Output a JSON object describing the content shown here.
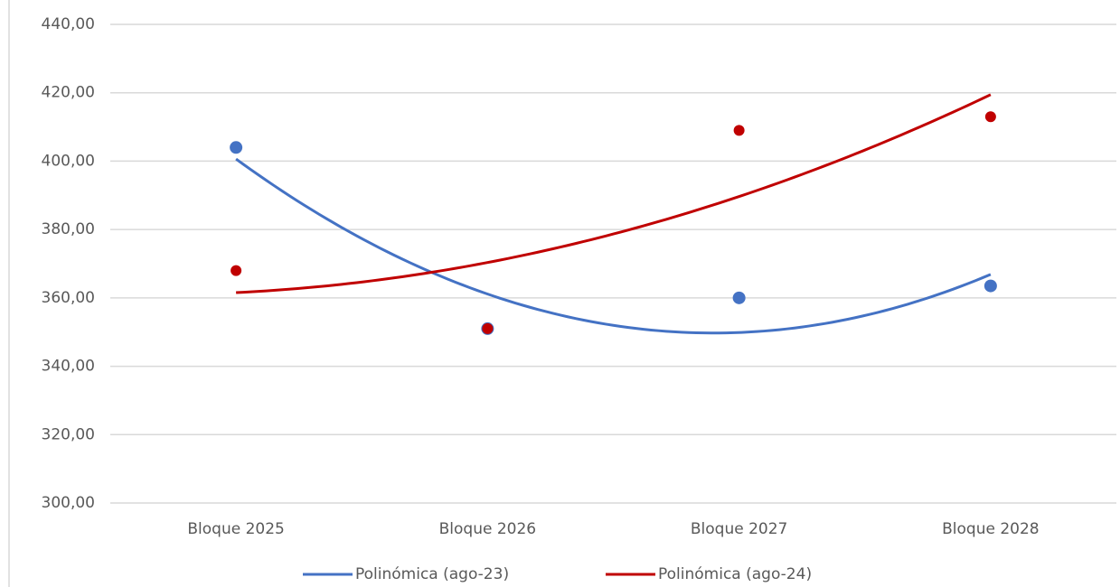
{
  "chart_data": {
    "type": "scatter",
    "categories": [
      "Bloque 2025",
      "Bloque 2026",
      "Bloque 2027",
      "Bloque 2028"
    ],
    "series": [
      {
        "name": "Polinómica (ago-23)",
        "color": "#4472c4",
        "values": [
          404,
          351,
          360,
          363.5
        ]
      },
      {
        "name": "Polinómica (ago-24)",
        "color": "#c00000",
        "values": [
          368,
          351,
          409,
          413
        ]
      }
    ],
    "trendline": {
      "type": "polynomial",
      "order": 2
    },
    "ylim": [
      300,
      440
    ],
    "yticks": [
      {
        "value": 300,
        "label": "300,00"
      },
      {
        "value": 320,
        "label": "320,00"
      },
      {
        "value": 340,
        "label": "340,00"
      },
      {
        "value": 360,
        "label": "360,00"
      },
      {
        "value": 380,
        "label": "380,00"
      },
      {
        "value": 400,
        "label": "400,00"
      },
      {
        "value": 420,
        "label": "420,00"
      },
      {
        "value": 440,
        "label": "440,00"
      }
    ],
    "grid": true,
    "legend": "bottom"
  }
}
